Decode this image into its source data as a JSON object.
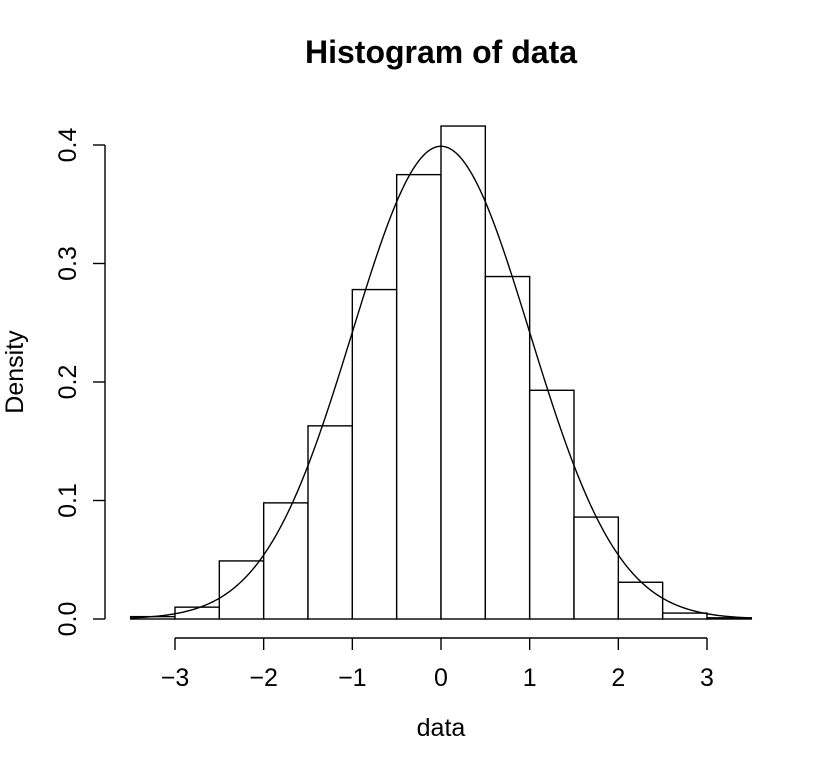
{
  "chart_data": {
    "type": "bar",
    "title": "Histogram of data",
    "xlabel": "data",
    "ylabel": "Density",
    "xlim": [
      -3.5,
      3.5
    ],
    "ylim": [
      0,
      0.4
    ],
    "x_ticks": [
      -3,
      -2,
      -1,
      0,
      1,
      2,
      3
    ],
    "x_tick_labels": [
      "−3",
      "−2",
      "−1",
      "0",
      "1",
      "2",
      "3"
    ],
    "y_ticks": [
      0.0,
      0.1,
      0.2,
      0.3,
      0.4
    ],
    "y_tick_labels": [
      "0.0",
      "0.1",
      "0.2",
      "0.3",
      "0.4"
    ],
    "grid": false,
    "bins": [
      {
        "start": -3.5,
        "end": -3.0,
        "density": 0.002
      },
      {
        "start": -3.0,
        "end": -2.5,
        "density": 0.01
      },
      {
        "start": -2.5,
        "end": -2.0,
        "density": 0.049
      },
      {
        "start": -2.0,
        "end": -1.5,
        "density": 0.098
      },
      {
        "start": -1.5,
        "end": -1.0,
        "density": 0.163
      },
      {
        "start": -1.0,
        "end": -0.5,
        "density": 0.278
      },
      {
        "start": -0.5,
        "end": 0.0,
        "density": 0.375
      },
      {
        "start": 0.0,
        "end": 0.5,
        "density": 0.416
      },
      {
        "start": 0.5,
        "end": 1.0,
        "density": 0.289
      },
      {
        "start": 1.0,
        "end": 1.5,
        "density": 0.193
      },
      {
        "start": 1.5,
        "end": 2.0,
        "density": 0.086
      },
      {
        "start": 2.0,
        "end": 2.5,
        "density": 0.031
      },
      {
        "start": 2.5,
        "end": 3.0,
        "density": 0.005
      },
      {
        "start": 3.0,
        "end": 3.5,
        "density": 0.001
      }
    ],
    "overlay_curve": {
      "type": "normal-density",
      "mean": 0,
      "sd": 1
    }
  }
}
